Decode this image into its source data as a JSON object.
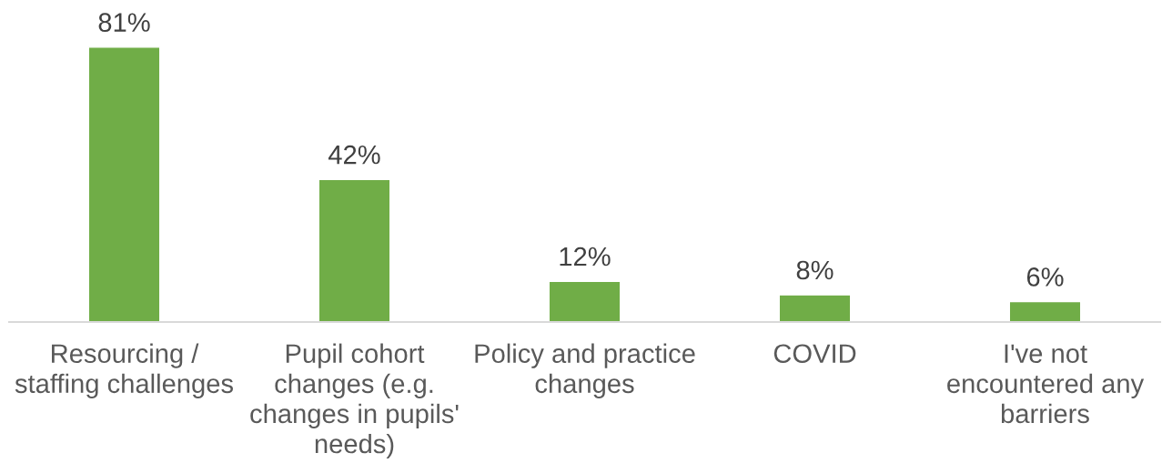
{
  "chart_data": {
    "type": "bar",
    "categories": [
      "Resourcing / staffing challenges",
      "Pupil cohort changes (e.g. changes in pupils' needs)",
      "Policy and practice changes",
      "COVID",
      "I've not encountered any barriers"
    ],
    "values": [
      81,
      42,
      12,
      8,
      6
    ],
    "value_labels": [
      "81%",
      "42%",
      "12%",
      "8%",
      "6%"
    ],
    "color": "#70ad47",
    "tick_labels": "x",
    "grid": false
  }
}
